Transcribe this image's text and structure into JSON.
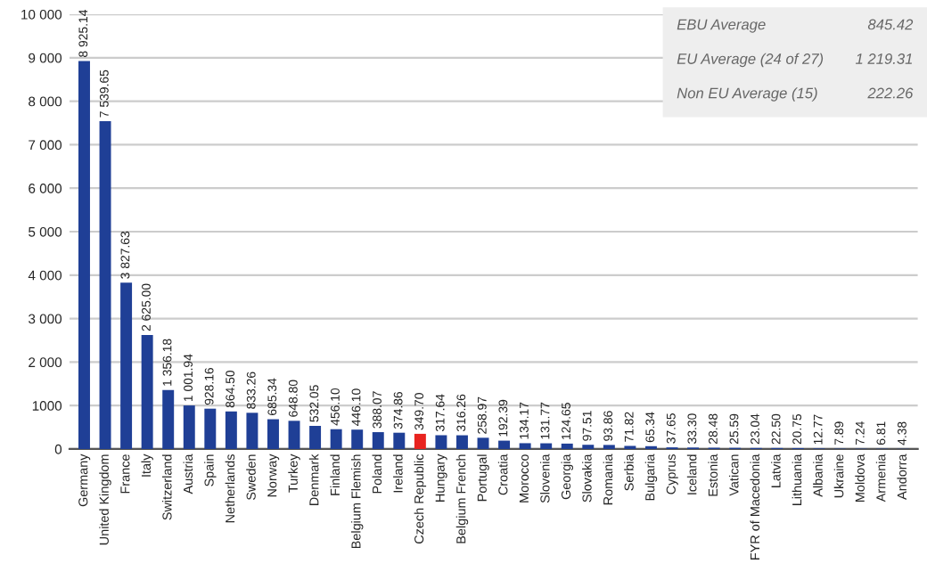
{
  "chart_data": {
    "type": "bar",
    "categories": [
      "Germany",
      "United Kingdom",
      "France",
      "Italy",
      "Switzerland",
      "Austria",
      "Spain",
      "Netherlands",
      "Sweden",
      "Norway",
      "Turkey",
      "Denmark",
      "Finland",
      "Belgium Flemish",
      "Poland",
      "Ireland",
      "Czech Republic",
      "Hungary",
      "Belgium French",
      "Portugal",
      "Croatia",
      "Morocco",
      "Slovenia",
      "Georgia",
      "Slovakia",
      "Romania",
      "Serbia",
      "Bulgaria",
      "Cyprus",
      "Iceland",
      "Estonia",
      "Vatican",
      "FYR of Macedonia",
      "Latvia",
      "Lithuania",
      "Albania",
      "Ukraine",
      "Moldova",
      "Armenia",
      "Andorra"
    ],
    "values": [
      8925.14,
      7539.65,
      3827.63,
      2625.0,
      1356.18,
      1001.94,
      928.16,
      864.5,
      833.26,
      685.34,
      648.8,
      532.05,
      456.1,
      446.1,
      388.07,
      374.86,
      349.7,
      317.64,
      316.26,
      258.97,
      192.39,
      134.17,
      131.77,
      124.65,
      97.51,
      93.86,
      71.82,
      65.34,
      37.65,
      33.3,
      28.48,
      25.59,
      23.04,
      22.5,
      20.75,
      12.77,
      7.89,
      7.24,
      6.81,
      4.38
    ],
    "value_labels": [
      "8 925.14",
      "7 539.65",
      "3 827.63",
      "2 625.00",
      "1 356.18",
      "1 001.94",
      "928.16",
      "864.50",
      "833.26",
      "685.34",
      "648.80",
      "532.05",
      "456.10",
      "446.10",
      "388.07",
      "374.86",
      "349.70",
      "317.64",
      "316.26",
      "258.97",
      "192.39",
      "134.17",
      "131.77",
      "124.65",
      "97.51",
      "93.86",
      "71.82",
      "65.34",
      "37.65",
      "33.30",
      "28.48",
      "25.59",
      "23.04",
      "22.50",
      "20.75",
      "12.77",
      "7.89",
      "7.24",
      "6.81",
      "4.38"
    ],
    "colors": [
      "#1f3f96",
      "#1f3f96",
      "#1f3f96",
      "#1f3f96",
      "#1f3f96",
      "#1f3f96",
      "#1f3f96",
      "#1f3f96",
      "#1f3f96",
      "#1f3f96",
      "#1f3f96",
      "#1f3f96",
      "#1f3f96",
      "#1f3f96",
      "#1f3f96",
      "#1f3f96",
      "#e8231f",
      "#1f3f96",
      "#1f3f96",
      "#1f3f96",
      "#1f3f96",
      "#1f3f96",
      "#1f3f96",
      "#1f3f96",
      "#1f3f96",
      "#1f3f96",
      "#1f3f96",
      "#1f3f96",
      "#1f3f96",
      "#1f3f96",
      "#1f3f96",
      "#1f3f96",
      "#1f3f96",
      "#1f3f96",
      "#1f3f96",
      "#1f3f96",
      "#1f3f96",
      "#1f3f96",
      "#1f3f96",
      "#1f3f96"
    ],
    "ylim": [
      0,
      10000
    ],
    "yticks": [
      0,
      {
        "value": 1000,
        "label": "1000"
      },
      {
        "value": 2000,
        "label": "2 000"
      },
      {
        "value": 3000,
        "label": "3 000"
      },
      {
        "value": 4000,
        "label": "4 000"
      },
      {
        "value": 5000,
        "label": "5 000"
      },
      {
        "value": 6000,
        "label": "6 000"
      },
      {
        "value": 7000,
        "label": "7 000"
      },
      {
        "value": 8000,
        "label": "8 000"
      },
      {
        "value": 9000,
        "label": "9 000"
      },
      {
        "value": 10000,
        "label": "10 000"
      }
    ],
    "grid": "y",
    "annotations": [
      "EBU Average",
      "845.42",
      "EU Average (24 of 27)",
      "1 219.31",
      "Non EU Average (15)",
      "222.26"
    ]
  }
}
